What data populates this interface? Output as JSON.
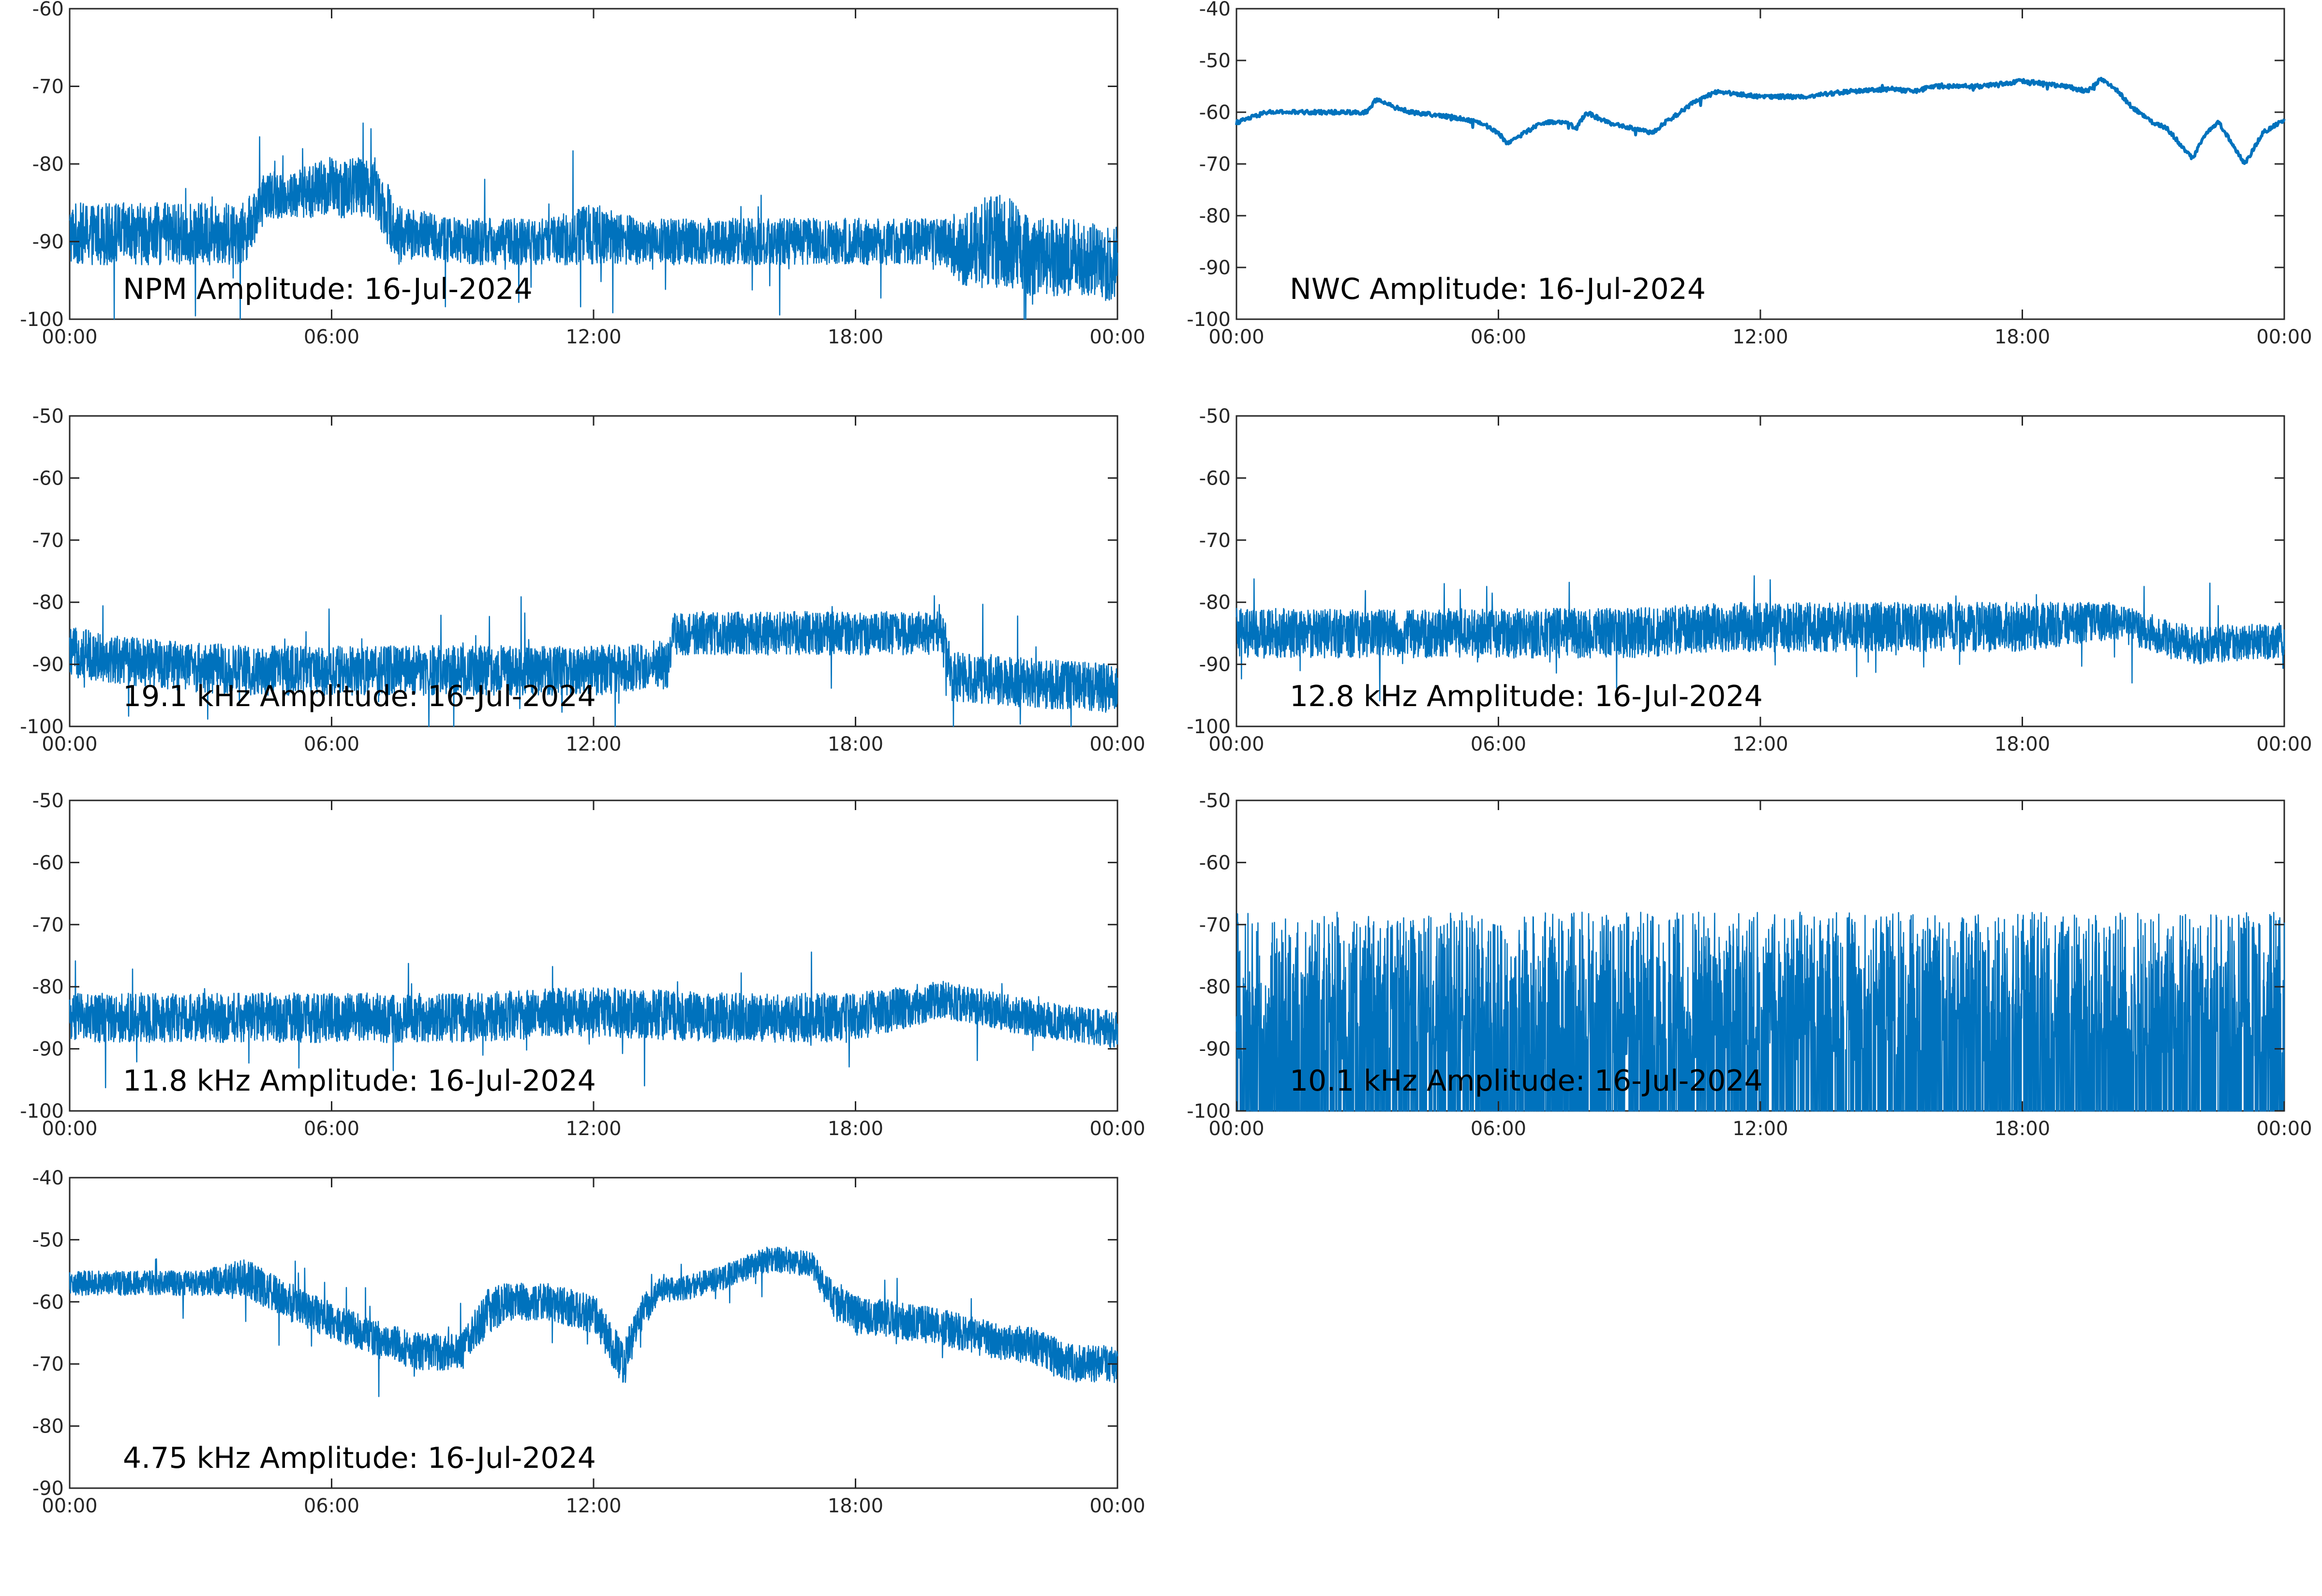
{
  "figure": {
    "line_color": "#0072BD"
  },
  "chart_data": [
    {
      "type": "line",
      "label": "NPM Amplitude: 16-Jul-2024",
      "ylim": [
        -100,
        -60
      ],
      "yticks": [
        "-60",
        "-70",
        "-80",
        "-90",
        "-100"
      ],
      "xticks": [
        "00:00",
        "06:00",
        "12:00",
        "18:00",
        "00:00"
      ],
      "xlim_hours": [
        0,
        24
      ],
      "series": [
        {
          "x_hours": [
            0,
            1,
            2,
            3,
            4,
            4.5,
            5,
            6,
            7,
            7.5,
            8,
            9,
            10,
            11,
            12,
            13,
            14,
            15,
            16,
            17,
            18,
            19,
            20,
            20.5,
            21,
            21.5,
            22,
            23,
            24
          ],
          "mean": [
            -89,
            -89,
            -89,
            -89,
            -89,
            -84,
            -84,
            -83,
            -83,
            -89,
            -89,
            -90,
            -90,
            -90,
            -89,
            -90,
            -90,
            -90,
            -90,
            -90,
            -90,
            -90,
            -90,
            -91,
            -90,
            -90,
            -92,
            -92,
            -93
          ],
          "spread": [
            4,
            4,
            4,
            4,
            4,
            3,
            3,
            4,
            4,
            4,
            3,
            3,
            3,
            3,
            4,
            3,
            3,
            3,
            3,
            3,
            3,
            3,
            3,
            5,
            6,
            6,
            5,
            5,
            5
          ]
        }
      ]
    },
    {
      "type": "line",
      "label": "NWC Amplitude: 16-Jul-2024",
      "ylim": [
        -100,
        -40
      ],
      "yticks": [
        "-40",
        "-50",
        "-60",
        "-70",
        "-80",
        "-90",
        "-100"
      ],
      "xticks": [
        "00:00",
        "06:00",
        "12:00",
        "18:00",
        "00:00"
      ],
      "xlim_hours": [
        0,
        24
      ],
      "series": [
        {
          "x_hours": [
            0,
            0.7,
            1.5,
            2.5,
            3.0,
            3.2,
            3.6,
            4.0,
            5.0,
            5.6,
            6.0,
            6.2,
            6.6,
            7.0,
            7.5,
            7.8,
            8.0,
            8.5,
            9.0,
            9.5,
            10.0,
            10.5,
            11.0,
            12.0,
            13.0,
            14.0,
            15.0,
            15.5,
            16.0,
            17.0,
            18.0,
            18.5,
            19.0,
            19.5,
            19.8,
            20.2,
            20.5,
            21.0,
            21.3,
            21.6,
            21.9,
            22.2,
            22.5,
            22.8,
            23.1,
            23.5,
            24.0
          ],
          "mean": [
            -62,
            -60,
            -60,
            -60,
            -60,
            -57.5,
            -59,
            -60,
            -61,
            -62,
            -64,
            -66,
            -64,
            -62,
            -62,
            -63,
            -60,
            -62,
            -63,
            -64,
            -61,
            -58,
            -56,
            -57,
            -57,
            -56,
            -55.5,
            -56,
            -55,
            -55,
            -54,
            -54.5,
            -55,
            -56,
            -53.5,
            -56,
            -59,
            -62,
            -63,
            -66,
            -69,
            -64,
            -62,
            -66,
            -70,
            -64,
            -61.5
          ],
          "spread": [
            0.4,
            0.4,
            0.4,
            0.4,
            0.4,
            0.4,
            0.4,
            0.4,
            0.4,
            0.4,
            0.4,
            0.4,
            0.4,
            0.4,
            0.4,
            0.4,
            0.4,
            0.4,
            0.4,
            0.4,
            0.4,
            0.4,
            0.4,
            0.4,
            0.4,
            0.4,
            0.4,
            0.4,
            0.4,
            0.4,
            0.4,
            0.4,
            0.4,
            0.4,
            0.4,
            0.4,
            0.4,
            0.4,
            0.4,
            0.4,
            0.4,
            0.4,
            0.4,
            0.4,
            0.4,
            0.4,
            0.4
          ]
        }
      ]
    },
    {
      "type": "line",
      "label": "19.1 kHz Amplitude: 16-Jul-2024",
      "ylim": [
        -100,
        -50
      ],
      "yticks": [
        "-50",
        "-60",
        "-70",
        "-80",
        "-90",
        "-100"
      ],
      "xticks": [
        "00:00",
        "06:00",
        "12:00",
        "18:00",
        "00:00"
      ],
      "xlim_hours": [
        0,
        24
      ],
      "series": [
        {
          "x_hours": [
            0,
            2,
            4,
            6,
            8,
            10,
            12,
            13.7,
            13.8,
            16,
            18,
            20.0,
            20.2,
            22,
            24
          ],
          "mean": [
            -88,
            -90,
            -91,
            -91,
            -91,
            -91,
            -91,
            -90,
            -85,
            -85,
            -85,
            -85,
            -92,
            -93,
            -94
          ],
          "spread": [
            4,
            4,
            4,
            4,
            4,
            4,
            4,
            4,
            3.5,
            3.5,
            3.5,
            3.5,
            4,
            4,
            4
          ]
        }
      ]
    },
    {
      "type": "line",
      "label": "12.8 kHz Amplitude: 16-Jul-2024",
      "ylim": [
        -100,
        -50
      ],
      "yticks": [
        "-50",
        "-60",
        "-70",
        "-80",
        "-90",
        "-100"
      ],
      "xticks": [
        "00:00",
        "06:00",
        "12:00",
        "18:00",
        "00:00"
      ],
      "xlim_hours": [
        0,
        24
      ],
      "series": [
        {
          "x_hours": [
            0,
            3,
            6,
            9,
            11,
            12,
            15,
            18,
            20,
            21,
            22,
            24
          ],
          "mean": [
            -85,
            -85,
            -85,
            -85,
            -84,
            -84,
            -84,
            -84,
            -83,
            -85,
            -87,
            -86
          ],
          "spread": [
            4,
            4,
            4,
            4,
            4,
            4,
            4,
            4,
            3,
            3,
            3,
            3
          ]
        }
      ]
    },
    {
      "type": "line",
      "label": "11.8 kHz Amplitude: 16-Jul-2024",
      "ylim": [
        -100,
        -50
      ],
      "yticks": [
        "-50",
        "-60",
        "-70",
        "-80",
        "-90",
        "-100"
      ],
      "xticks": [
        "00:00",
        "06:00",
        "12:00",
        "18:00",
        "00:00"
      ],
      "xlim_hours": [
        0,
        24
      ],
      "series": [
        {
          "x_hours": [
            0,
            3,
            6,
            9,
            12,
            15,
            18,
            20,
            22,
            24
          ],
          "mean": [
            -85,
            -85,
            -85,
            -85,
            -84,
            -85,
            -85,
            -82,
            -85,
            -87
          ],
          "spread": [
            4,
            4,
            4,
            4,
            4,
            4,
            4,
            3,
            3,
            3
          ]
        }
      ]
    },
    {
      "type": "line",
      "label": "10.1 kHz Amplitude: 16-Jul-2024",
      "ylim": [
        -100,
        -50
      ],
      "yticks": [
        "-50",
        "-60",
        "-70",
        "-80",
        "-90",
        "-100"
      ],
      "xticks": [
        "00:00",
        "06:00",
        "12:00",
        "18:00",
        "00:00"
      ],
      "xlim_hours": [
        0,
        24
      ],
      "series": [
        {
          "x_hours": [
            0,
            3,
            6,
            9,
            12,
            15,
            18,
            21,
            24
          ],
          "mean": [
            -80,
            -80,
            -80,
            -80,
            -80,
            -80,
            -80,
            -80,
            -80
          ],
          "spread": [
            15,
            15,
            15,
            15,
            15,
            15,
            15,
            15,
            15
          ]
        }
      ]
    },
    {
      "type": "line",
      "label": "4.75 kHz Amplitude: 16-Jul-2024",
      "ylim": [
        -90,
        -40
      ],
      "yticks": [
        "-40",
        "-50",
        "-60",
        "-70",
        "-80",
        "-90"
      ],
      "xticks": [
        "00:00",
        "06:00",
        "12:00",
        "18:00",
        "00:00"
      ],
      "xlim_hours": [
        0,
        24
      ],
      "series": [
        {
          "x_hours": [
            0,
            1,
            2,
            3,
            4,
            5,
            6,
            7,
            8,
            9,
            9.5,
            10,
            11,
            12,
            12.7,
            13,
            13.5,
            14,
            15,
            16,
            17,
            17.5,
            18,
            19,
            20,
            21,
            22,
            23,
            24
          ],
          "mean": [
            -57,
            -57,
            -57,
            -57,
            -56,
            -60,
            -63,
            -66,
            -68,
            -68,
            -62,
            -60,
            -60,
            -62,
            -70,
            -63,
            -58,
            -58,
            -56,
            -53,
            -54,
            -60,
            -62,
            -63,
            -64,
            -66,
            -67,
            -70,
            -70
          ],
          "spread": [
            2,
            2,
            2,
            2,
            3,
            3,
            3,
            3,
            3,
            3,
            4,
            3,
            3,
            3,
            4,
            3,
            2,
            2,
            2,
            2,
            2,
            3,
            3,
            3,
            3,
            3,
            3,
            3,
            3
          ]
        }
      ]
    }
  ]
}
